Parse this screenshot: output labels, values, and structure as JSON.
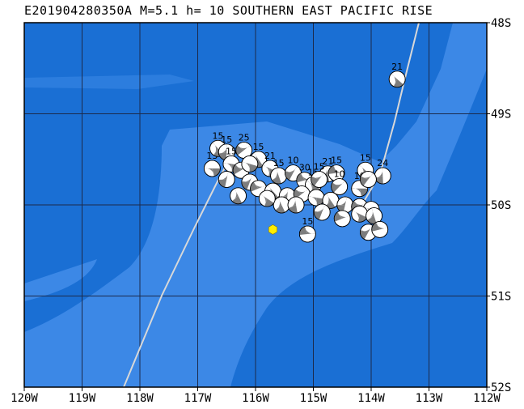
{
  "title": "E201904280350A M=5.1 h= 10 SOUTHERN EAST PACIFIC RISE",
  "colors": {
    "ocean_deep": "#1a6fd4",
    "ocean_shallow": "#3c88e6",
    "grid": "#1c2a4a",
    "ridge": "#d8d8d8",
    "mechanism_dark": "#7d7d7d",
    "mechanism_light": "#ffffff",
    "epicenter": "#ffee00"
  },
  "lon_labels": [
    "120W",
    "119W",
    "118W",
    "117W",
    "116W",
    "115W",
    "114W",
    "113W",
    "112W"
  ],
  "lat_labels": [
    "48S",
    "49S",
    "50S",
    "51S",
    "52S"
  ],
  "extent": {
    "lon": [
      -120,
      -112
    ],
    "lat": [
      -52,
      -48
    ]
  },
  "epicenter": {
    "lon": -115.7,
    "lat": -50.27
  },
  "events": [
    {
      "lon": -116.75,
      "lat": -49.6,
      "depth": "13"
    },
    {
      "lon": -116.65,
      "lat": -49.38,
      "depth": "15"
    },
    {
      "lon": -116.5,
      "lat": -49.42,
      "depth": "15"
    },
    {
      "lon": -116.2,
      "lat": -49.4,
      "depth": "25"
    },
    {
      "lon": -116.42,
      "lat": -49.55,
      "depth": "15"
    },
    {
      "lon": -115.95,
      "lat": -49.5,
      "depth": "15"
    },
    {
      "lon": -116.5,
      "lat": -49.72,
      "depth": ""
    },
    {
      "lon": -116.25,
      "lat": -49.62,
      "depth": ""
    },
    {
      "lon": -116.1,
      "lat": -49.55,
      "depth": ""
    },
    {
      "lon": -116.3,
      "lat": -49.9,
      "depth": ""
    },
    {
      "lon": -116.1,
      "lat": -49.75,
      "depth": ""
    },
    {
      "lon": -115.95,
      "lat": -49.82,
      "depth": ""
    },
    {
      "lon": -115.75,
      "lat": -49.6,
      "depth": "21"
    },
    {
      "lon": -115.6,
      "lat": -49.68,
      "depth": "15"
    },
    {
      "lon": -115.35,
      "lat": -49.65,
      "depth": "10"
    },
    {
      "lon": -115.15,
      "lat": -49.73,
      "depth": "30"
    },
    {
      "lon": -115.0,
      "lat": -49.78,
      "depth": "15"
    },
    {
      "lon": -114.75,
      "lat": -49.66,
      "depth": "21"
    },
    {
      "lon": -114.9,
      "lat": -49.72,
      "depth": "15"
    },
    {
      "lon": -114.6,
      "lat": -49.65,
      "depth": "15"
    },
    {
      "lon": -114.1,
      "lat": -49.62,
      "depth": "15"
    },
    {
      "lon": -113.8,
      "lat": -49.68,
      "depth": "24"
    },
    {
      "lon": -114.55,
      "lat": -49.8,
      "depth": "10"
    },
    {
      "lon": -114.2,
      "lat": -49.82,
      "depth": "10"
    },
    {
      "lon": -115.7,
      "lat": -49.85,
      "depth": ""
    },
    {
      "lon": -115.45,
      "lat": -49.9,
      "depth": ""
    },
    {
      "lon": -115.2,
      "lat": -49.88,
      "depth": ""
    },
    {
      "lon": -114.95,
      "lat": -49.92,
      "depth": ""
    },
    {
      "lon": -114.7,
      "lat": -49.95,
      "depth": ""
    },
    {
      "lon": -114.45,
      "lat": -50.0,
      "depth": ""
    },
    {
      "lon": -114.2,
      "lat": -50.02,
      "depth": ""
    },
    {
      "lon": -114.0,
      "lat": -50.05,
      "depth": ""
    },
    {
      "lon": -115.55,
      "lat": -50.0,
      "depth": ""
    },
    {
      "lon": -114.85,
      "lat": -50.08,
      "depth": ""
    },
    {
      "lon": -114.5,
      "lat": -50.15,
      "depth": ""
    },
    {
      "lon": -114.2,
      "lat": -50.1,
      "depth": ""
    },
    {
      "lon": -113.95,
      "lat": -50.12,
      "depth": ""
    },
    {
      "lon": -114.05,
      "lat": -50.3,
      "depth": ""
    },
    {
      "lon": -113.85,
      "lat": -50.27,
      "depth": ""
    },
    {
      "lon": -115.8,
      "lat": -49.93,
      "depth": ""
    },
    {
      "lon": -115.3,
      "lat": -50.0,
      "depth": ""
    },
    {
      "lon": -114.05,
      "lat": -49.72,
      "depth": ""
    },
    {
      "lon": -115.1,
      "lat": -50.32,
      "depth": "15"
    },
    {
      "lon": -113.55,
      "lat": -48.62,
      "depth": "21"
    }
  ]
}
